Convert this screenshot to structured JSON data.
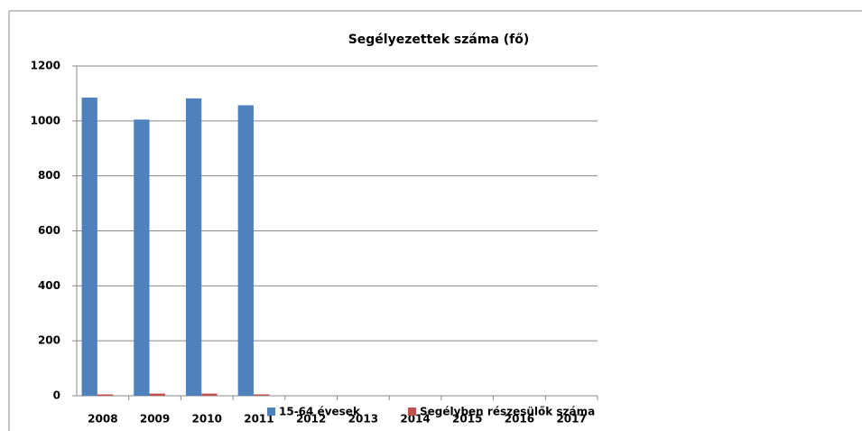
{
  "chart_data": {
    "type": "bar",
    "title": "Segélyezettek száma (fő)",
    "categories": [
      "2008",
      "2009",
      "2010",
      "2011",
      "2012",
      "2013",
      "2014",
      "2015",
      "2016",
      "2017"
    ],
    "series": [
      {
        "name": "15-64 évesek",
        "color": "#4f81bd",
        "values": [
          1085,
          1005,
          1082,
          1057,
          null,
          null,
          null,
          null,
          null,
          null
        ]
      },
      {
        "name": "Segélyben részesülők száma",
        "color": "#c0504d",
        "values": [
          5,
          8,
          8,
          5,
          null,
          null,
          null,
          null,
          null,
          null
        ]
      }
    ],
    "ylim": [
      0,
      1200
    ],
    "yticks": [
      0,
      200,
      400,
      600,
      800,
      1000,
      1200
    ],
    "grid": true,
    "legend": "bottom"
  }
}
